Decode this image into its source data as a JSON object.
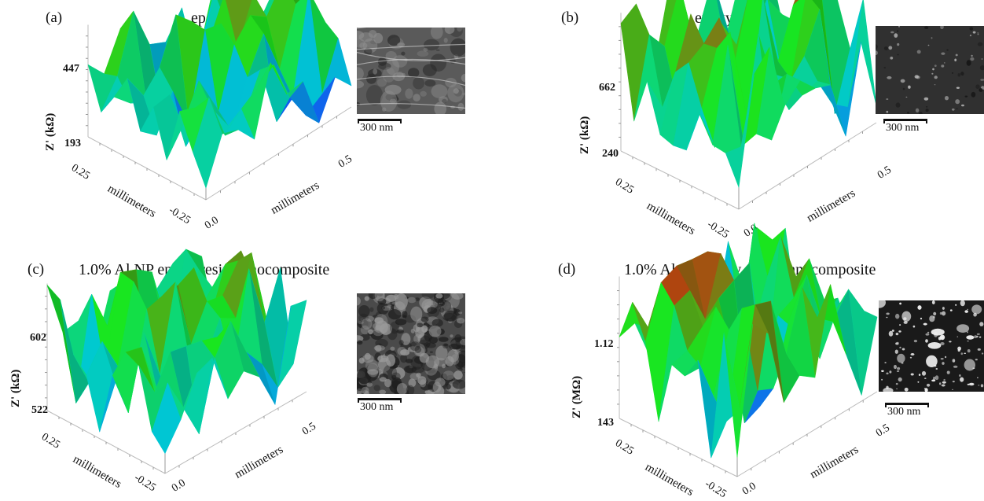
{
  "figure": {
    "panels": [
      {
        "id": "a",
        "label": "(a)",
        "title": "epoxy resin",
        "z_axis_label": "Z' (kΩ)",
        "z_max_label": "447",
        "z_min_label": "193",
        "y_axis_label": "millimeters",
        "x_axis_label": "millimeters",
        "y_tick_high": "0.25",
        "y_tick_low": "-0.25",
        "x_tick_low": "0.0",
        "x_tick_high": "0.5",
        "scale_bar": "300 nm",
        "sem_tone": "smooth"
      },
      {
        "id": "b",
        "label": "(b)",
        "title": "epoxy paint",
        "z_axis_label": "Z' (kΩ)",
        "z_max_label": "662",
        "z_min_label": "240",
        "y_axis_label": "millimeters",
        "x_axis_label": "millimeters",
        "y_tick_high": "0.25",
        "y_tick_low": "-0.25",
        "x_tick_low": "0.0",
        "x_tick_high": "0.5",
        "scale_bar": "300 nm",
        "sem_tone": "dark"
      },
      {
        "id": "c",
        "label": "(c)",
        "title": "1.0% Al NP epoxy resin nanocomposite",
        "z_axis_label": "Z' (kΩ)",
        "z_max_label": "602",
        "z_min_label": "522",
        "y_axis_label": "millimeters",
        "x_axis_label": "millimeters",
        "y_tick_high": "0.25",
        "y_tick_low": "-0.25",
        "x_tick_low": "0.0",
        "x_tick_high": "0.5",
        "scale_bar": "300 nm",
        "sem_tone": "rough"
      },
      {
        "id": "d",
        "label": "(d)",
        "title": "1.0% Al NP epoxy paint nanocomposite",
        "z_axis_label": "Z' (MΩ)",
        "z_max_label": "1.12",
        "z_min_label": "143",
        "y_axis_label": "millimeters",
        "x_axis_label": "millimeters",
        "y_tick_high": "0.25",
        "y_tick_low": "-0.25",
        "x_tick_low": "0.0",
        "x_tick_high": "0.5",
        "scale_bar": "300 nm",
        "sem_tone": "speckled"
      }
    ],
    "colormap": {
      "low": "#1a1aff",
      "mid_low": "#00c8d2",
      "mid": "#19e61e",
      "high": "#e60a0a"
    }
  }
}
